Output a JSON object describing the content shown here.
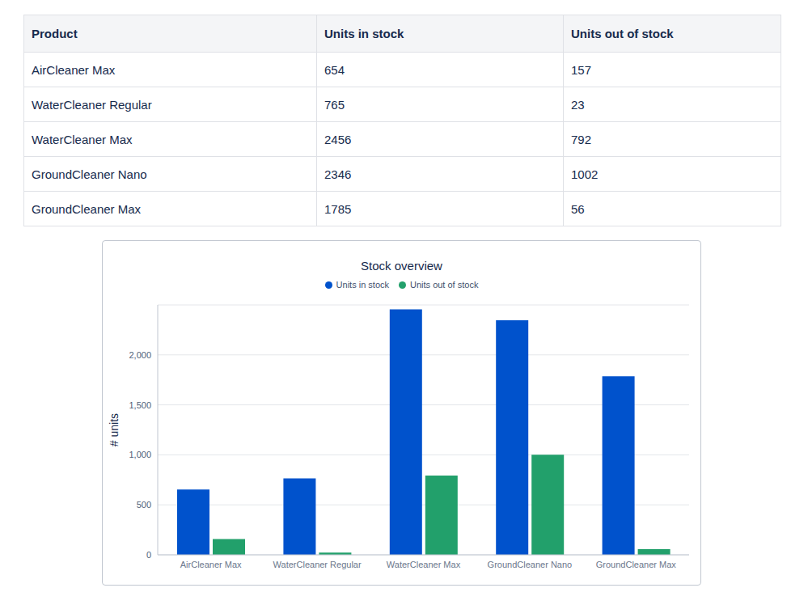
{
  "table": {
    "header": [
      "Product",
      "Units in stock",
      "Units out of stock"
    ],
    "rows": [
      [
        "AirCleaner Max",
        "654",
        "157"
      ],
      [
        "WaterCleaner Regular",
        "765",
        "23"
      ],
      [
        "WaterCleaner Max",
        "2456",
        "792"
      ],
      [
        "GroundCleaner Nano",
        "2346",
        "1002"
      ],
      [
        "GroundCleaner Max",
        "1785",
        "56"
      ]
    ]
  },
  "chart_data": {
    "type": "bar",
    "title": "Stock overview",
    "ylabel": "# units",
    "categories": [
      "AirCleaner Max",
      "WaterCleaner Regular",
      "WaterCleaner Max",
      "GroundCleaner Nano",
      "GroundCleaner Max"
    ],
    "series": [
      {
        "name": "Units in stock",
        "color": "#0052cc",
        "values": [
          654,
          765,
          2456,
          2346,
          1785
        ]
      },
      {
        "name": "Units out of stock",
        "color": "#22a06b",
        "values": [
          157,
          23,
          792,
          1002,
          56
        ]
      }
    ],
    "ylim": [
      0,
      2500
    ],
    "yticks": [
      0,
      500,
      {
        "value": 1000,
        "label": "1,000"
      },
      {
        "value": 1500,
        "label": "1,500"
      },
      {
        "value": 2000,
        "label": "2,000"
      }
    ],
    "grid": true,
    "legend": "top"
  }
}
